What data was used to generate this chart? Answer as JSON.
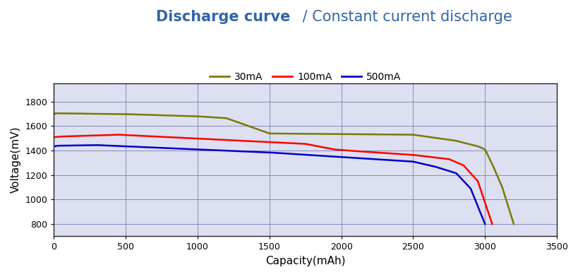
{
  "title_bold": "Discharge curve",
  "title_normal": " / Constant current discharge",
  "xlabel": "Capacity(mAh)",
  "ylabel": "Voltage(mV)",
  "xlim": [
    0,
    3500
  ],
  "ylim": [
    700,
    1950
  ],
  "yticks": [
    800,
    1000,
    1200,
    1400,
    1600,
    1800
  ],
  "xticks": [
    0,
    500,
    1000,
    1500,
    2000,
    2500,
    3000,
    3500
  ],
  "background_color": "#ffffff",
  "plot_bg_color": "#dde0f0",
  "grid_color": "#8888bb",
  "title_color": "#3366aa",
  "colors": {
    "30mA": "#7a7a00",
    "100mA": "#ff0000",
    "500mA": "#0000cc"
  },
  "legend_labels": [
    "30mA",
    "100mA",
    "500mA"
  ]
}
